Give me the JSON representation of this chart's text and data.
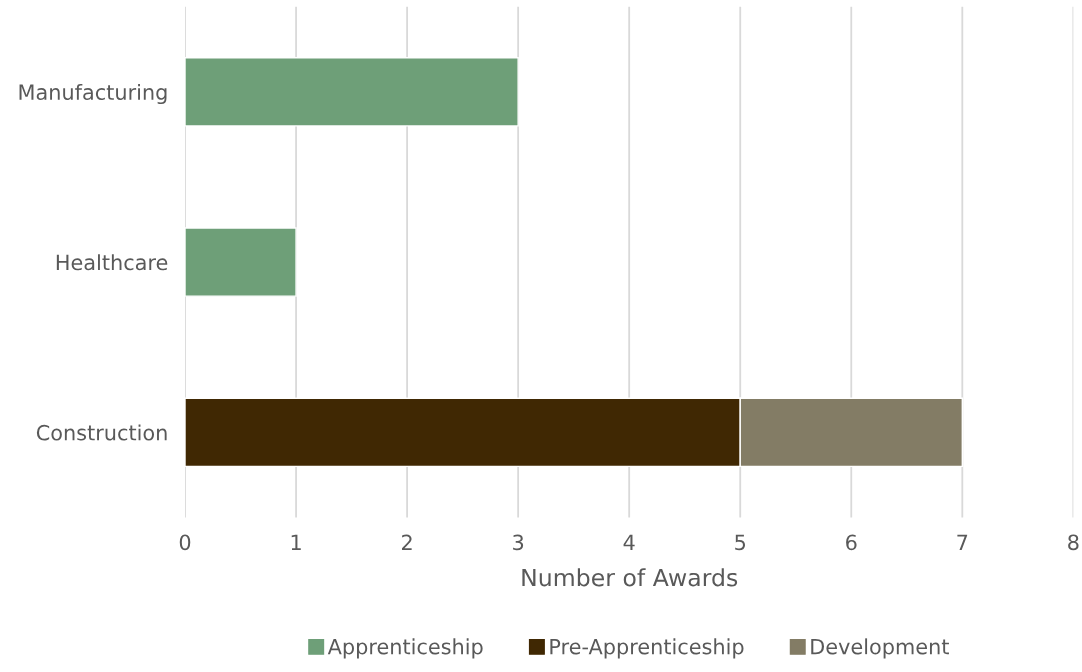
{
  "chart_data": {
    "type": "bar",
    "orientation": "horizontal",
    "stacked": true,
    "categories": [
      "Manufacturing",
      "Healthcare",
      "Construction"
    ],
    "series": [
      {
        "name": "Apprenticeship",
        "color": "#6e9f78",
        "values": [
          3,
          1,
          null
        ]
      },
      {
        "name": "Pre-Apprenticeship",
        "color": "#402803",
        "values": [
          null,
          null,
          5
        ]
      },
      {
        "name": "Development",
        "color": "#837c65",
        "values": [
          null,
          null,
          2
        ]
      }
    ],
    "xlabel": "Number of Awards",
    "xlim": [
      0,
      8
    ],
    "xticks": [
      0,
      1,
      2,
      3,
      4,
      5,
      6,
      7,
      8
    ],
    "grid": "x",
    "legend": "bottom"
  }
}
